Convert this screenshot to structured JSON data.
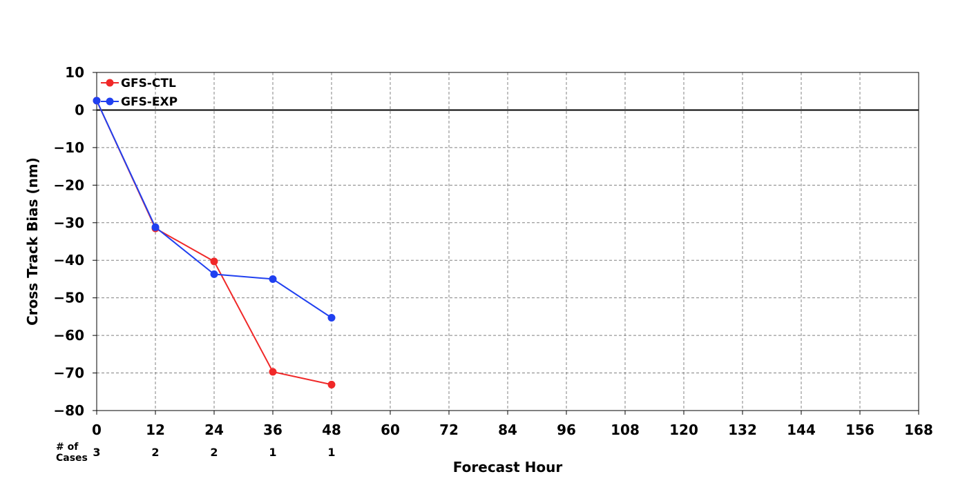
{
  "chart_data": {
    "type": "line",
    "title": "",
    "xlabel": "Forecast Hour",
    "ylabel": "Cross Track Bias (nm)",
    "xlim": [
      0,
      168
    ],
    "ylim": [
      -80,
      10
    ],
    "x_ticks": [
      0,
      12,
      24,
      36,
      48,
      60,
      72,
      84,
      96,
      108,
      120,
      132,
      144,
      156,
      168
    ],
    "y_ticks": [
      10,
      0,
      -10,
      -20,
      -30,
      -40,
      -50,
      -60,
      -70,
      -80
    ],
    "x_tick_labels": [
      "0",
      "12",
      "24",
      "36",
      "48",
      "60",
      "72",
      "84",
      "96",
      "108",
      "120",
      "132",
      "144",
      "156",
      "168"
    ],
    "y_tick_labels": [
      "10",
      "0",
      "−10",
      "−20",
      "−30",
      "−40",
      "−50",
      "−60",
      "−70",
      "−80"
    ],
    "grid": true,
    "zero_line": true,
    "legend_position": "top-left",
    "series": [
      {
        "name": "GFS-CTL",
        "color": "#f02828",
        "x": [
          0,
          12,
          24,
          36,
          48
        ],
        "values": [
          2.5,
          -31.5,
          -40.3,
          -69.7,
          -73.1
        ]
      },
      {
        "name": "GFS-EXP",
        "color": "#2040f0",
        "x": [
          0,
          12,
          24,
          36,
          48
        ],
        "values": [
          2.5,
          -31.2,
          -43.7,
          -45.0,
          -55.3
        ]
      }
    ],
    "cases": {
      "label_line1": "# of",
      "label_line2": "Cases",
      "x": [
        0,
        12,
        24,
        36,
        48
      ],
      "values": [
        "3",
        "2",
        "2",
        "1",
        "1"
      ]
    }
  }
}
